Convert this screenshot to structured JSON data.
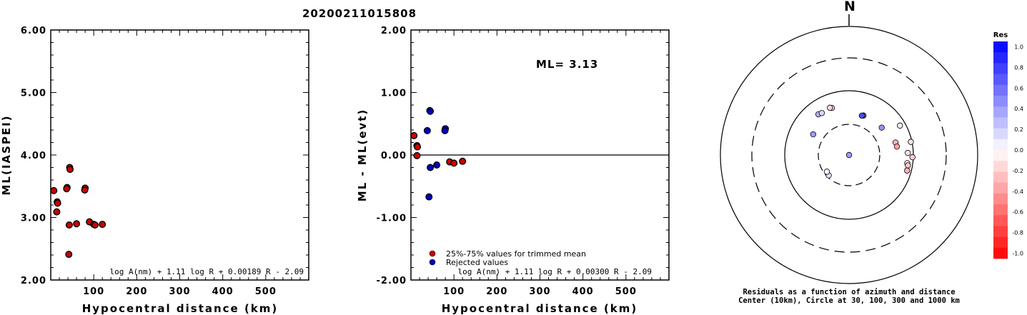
{
  "page_title": "20200211015808",
  "chart_data": [
    {
      "type": "scatter",
      "ylabel": "ML(IASPEI)",
      "xlabel": "Hypocentral distance (km)",
      "xlim": [
        0,
        600
      ],
      "ylim": [
        2.0,
        6.0
      ],
      "x_ticks": [
        "100",
        "200",
        "300",
        "400",
        "500"
      ],
      "y_ticks": [
        "2.00",
        "3.00",
        "4.00",
        "5.00",
        "6.00"
      ],
      "formula": "log A(nm) + 1.11 log R + 0.00189 R - 2.09",
      "series": [
        {
          "color": "#cc0000",
          "points": [
            [
              7,
              3.43
            ],
            [
              15,
              3.25
            ],
            [
              16,
              3.23
            ],
            [
              14,
              3.09
            ],
            [
              38,
              3.48
            ],
            [
              37,
              3.46
            ],
            [
              44,
              3.8
            ],
            [
              45,
              3.77
            ],
            [
              43,
              2.88
            ],
            [
              42,
              2.41
            ],
            [
              60,
              2.9
            ],
            [
              80,
              3.47
            ],
            [
              79,
              3.44
            ],
            [
              90,
              2.93
            ],
            [
              100,
              2.89
            ],
            [
              103,
              2.88
            ],
            [
              120,
              2.89
            ]
          ]
        }
      ]
    },
    {
      "type": "scatter",
      "ylabel": "ML - ML(evt)",
      "xlabel": "Hypocentral distance (km)",
      "xlim": [
        0,
        600
      ],
      "ylim": [
        -2.0,
        2.0
      ],
      "x_ticks": [
        "100",
        "200",
        "300",
        "400",
        "500"
      ],
      "y_ticks": [
        "-2.00",
        "-1.00",
        "0.00",
        "1.00",
        "2.00"
      ],
      "zero_line": 0.0,
      "ml_label": "ML= 3.13",
      "formula": "log A(nm) + 1.11 log R + 0.00300 R - 2.09",
      "legend": [
        {
          "label": "25%-75% values for trimmed mean",
          "color": "#cc0000"
        },
        {
          "label": "Rejected values",
          "color": "#0000cc"
        }
      ],
      "series": [
        {
          "name": "25%-75% values for trimmed mean",
          "color": "#cc0000",
          "points": [
            [
              7,
              0.31
            ],
            [
              14,
              0.15
            ],
            [
              15,
              0.13
            ],
            [
              14,
              -0.01
            ],
            [
              90,
              -0.11
            ],
            [
              100,
              -0.13
            ],
            [
              120,
              -0.1
            ]
          ]
        },
        {
          "name": "Rejected values",
          "color": "#0000cc",
          "points": [
            [
              38,
              0.39
            ],
            [
              44,
              0.71
            ],
            [
              45,
              0.7
            ],
            [
              80,
              0.42
            ],
            [
              79,
              0.39
            ],
            [
              45,
              -0.2
            ],
            [
              60,
              -0.16
            ],
            [
              42,
              -0.67
            ]
          ]
        }
      ]
    },
    {
      "type": "polar-scatter",
      "north_label": "N",
      "ring_distances_km": [
        10,
        30,
        100,
        300,
        1000
      ],
      "caption_line1": "Residuals as a function of azimuth and distance",
      "caption_line2": "Center (10km), Circle at 30, 100, 300 and 1000 km",
      "colorbar": {
        "title": "Res",
        "ticks": [
          "1.0",
          "0.8",
          "0.6",
          "0.4",
          "0.2",
          "0.0",
          "-0.2",
          "-0.4",
          "-0.6",
          "-0.8",
          "-1.0"
        ]
      },
      "points": [
        {
          "az": 323,
          "dist": 62,
          "res": 0.31
        },
        {
          "az": 327,
          "dist": 60,
          "res": 0.15
        },
        {
          "az": 225,
          "dist": 28,
          "res": 0.13
        },
        {
          "az": 233,
          "dist": 27,
          "res": -0.01
        },
        {
          "az": 300,
          "dist": 44,
          "res": 0.39
        },
        {
          "az": 20,
          "dist": 45,
          "res": 0.71
        },
        {
          "az": 18,
          "dist": 44,
          "res": 0.7
        },
        {
          "az": 50,
          "dist": 46,
          "res": 0.42
        },
        {
          "az": 165,
          "dist": 8,
          "res": 0.39
        },
        {
          "az": 340,
          "dist": 60,
          "res": -0.2
        },
        {
          "az": 338,
          "dist": 62,
          "res": -0.16
        },
        {
          "az": 78,
          "dist": 96,
          "res": -0.13
        },
        {
          "az": 98,
          "dist": 82,
          "res": -0.11
        },
        {
          "az": 88,
          "dist": 82,
          "res": -0.1
        },
        {
          "az": 75,
          "dist": 56,
          "res": -0.28
        },
        {
          "az": 80,
          "dist": 57,
          "res": -0.36
        },
        {
          "az": 60,
          "dist": 82,
          "res": -0.08
        },
        {
          "az": 100,
          "dist": 85,
          "res": -0.22
        },
        {
          "az": 105,
          "dist": 86,
          "res": -0.3
        },
        {
          "az": 92,
          "dist": 97,
          "res": -0.18
        }
      ]
    }
  ]
}
